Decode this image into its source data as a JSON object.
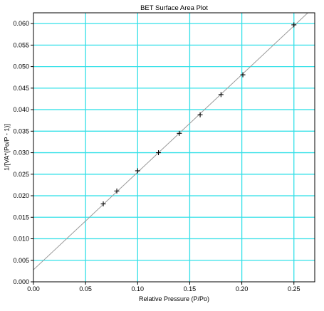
{
  "colors": {
    "grid": "#33e0e8",
    "frame": "#000000",
    "fit_line": "#9a9a9a",
    "marker": "#000000",
    "background": "#ffffff"
  },
  "chart_data": {
    "type": "scatter",
    "title": "BET Surface Area Plot",
    "xlabel": "Relative Pressure (P/Po)",
    "ylabel": "1/[VA*(Po/P - 1)]",
    "xlim": [
      0.0,
      0.27
    ],
    "ylim": [
      0.0,
      0.0625
    ],
    "x_ticks": [
      0.0,
      0.05,
      0.1,
      0.15,
      0.2,
      0.25
    ],
    "x_tick_labels": [
      "0.00",
      "0.05",
      "0.10",
      "0.15",
      "0.20",
      "0.25"
    ],
    "y_ticks": [
      0.0,
      0.005,
      0.01,
      0.015,
      0.02,
      0.025,
      0.03,
      0.035,
      0.04,
      0.045,
      0.05,
      0.055,
      0.06
    ],
    "y_tick_labels": [
      "0.000",
      "0.005",
      "0.010",
      "0.015",
      "0.020",
      "0.025",
      "0.030",
      "0.035",
      "0.040",
      "0.045",
      "0.050",
      "0.055",
      "0.060"
    ],
    "grid": true,
    "legend": "none",
    "series": [
      {
        "marker": "plus",
        "points": [
          {
            "x": 0.067,
            "y": 0.0181
          },
          {
            "x": 0.08,
            "y": 0.0211
          },
          {
            "x": 0.1,
            "y": 0.0258
          },
          {
            "x": 0.12,
            "y": 0.03
          },
          {
            "x": 0.14,
            "y": 0.0345
          },
          {
            "x": 0.16,
            "y": 0.0388
          },
          {
            "x": 0.18,
            "y": 0.0435
          },
          {
            "x": 0.201,
            "y": 0.0481
          },
          {
            "x": 0.25,
            "y": 0.0597
          }
        ]
      }
    ],
    "fit_line": {
      "x": [
        0.0,
        0.27
      ],
      "y": [
        0.0028,
        0.064
      ]
    }
  }
}
